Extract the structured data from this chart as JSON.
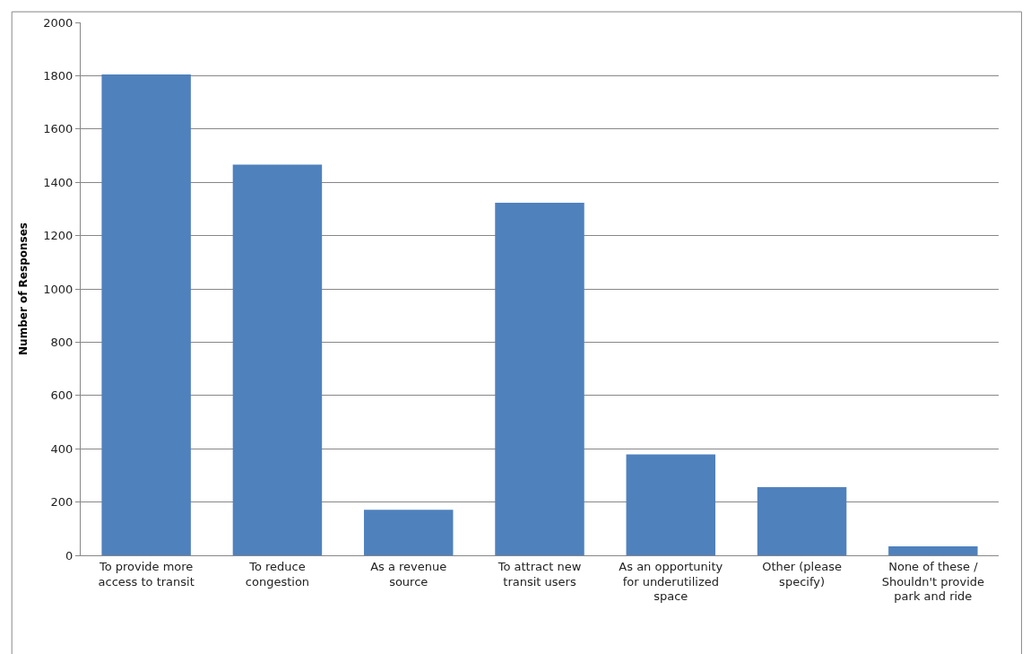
{
  "chart_data": {
    "type": "bar",
    "ylabel": "Number of Responses",
    "categories": [
      "To provide more access to transit",
      "To reduce congestion",
      "As a revenue source",
      "To attract new transit users",
      "As an opportunity for underutilized space",
      "Other (please specify)",
      "None of these / Shouldn't provide park and ride"
    ],
    "series": [
      {
        "color": "#4f81bd",
        "values": [
          1805,
          1466,
          171,
          1323,
          379,
          256,
          34
        ]
      }
    ],
    "ylim": [
      0,
      2000
    ],
    "yticks": [
      0,
      200,
      400,
      600,
      800,
      1000,
      1200,
      1400,
      1600,
      1800,
      2000
    ],
    "grid": "y"
  }
}
